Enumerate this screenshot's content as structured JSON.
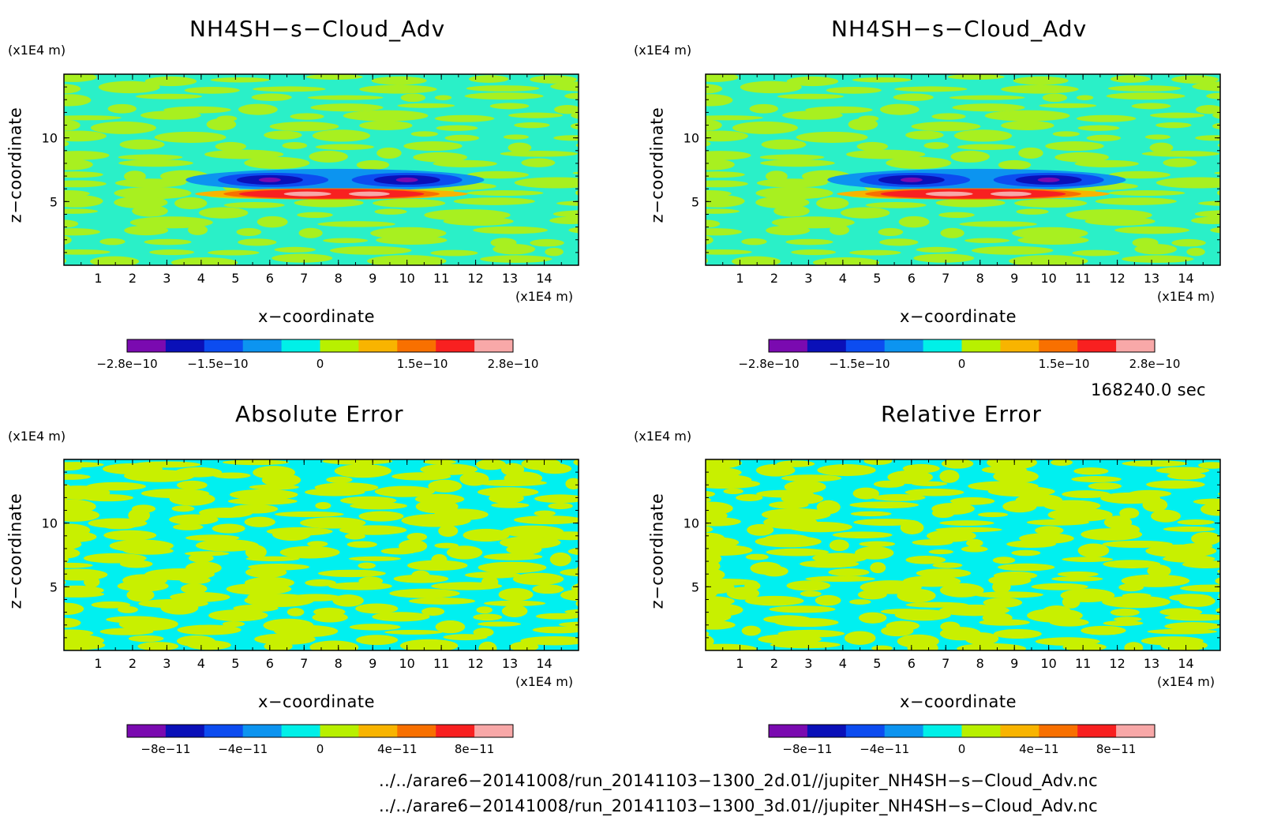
{
  "panels": [
    {
      "id": "p1",
      "title": "NH4SH−s−Cloud_Adv",
      "z_unit": "(x1E4 m)",
      "x_unit": "(x1E4 m)",
      "xlabel": "x−coordinate",
      "ylabel": "z−coordinate",
      "xticks": [
        "1",
        "2",
        "3",
        "4",
        "5",
        "6",
        "7",
        "8",
        "9",
        "10",
        "11",
        "12",
        "13",
        "14"
      ],
      "yticks": [
        "5",
        "10"
      ],
      "colorbar_labels": [
        "−2.8e−10",
        "−1.5e−10",
        "0",
        "1.5e−10",
        "2.8e−10"
      ]
    },
    {
      "id": "p2",
      "title": "NH4SH−s−Cloud_Adv",
      "z_unit": "(x1E4 m)",
      "x_unit": "(x1E4 m)",
      "xlabel": "x−coordinate",
      "ylabel": "z−coordinate",
      "xticks": [
        "1",
        "2",
        "3",
        "4",
        "5",
        "6",
        "7",
        "8",
        "9",
        "10",
        "11",
        "12",
        "13",
        "14"
      ],
      "yticks": [
        "5",
        "10"
      ],
      "colorbar_labels": [
        "−2.8e−10",
        "−1.5e−10",
        "0",
        "1.5e−10",
        "2.8e−10"
      ]
    },
    {
      "id": "p3",
      "title": "Absolute Error",
      "z_unit": "(x1E4 m)",
      "x_unit": "(x1E4 m)",
      "xlabel": "x−coordinate",
      "ylabel": "z−coordinate",
      "xticks": [
        "1",
        "2",
        "3",
        "4",
        "5",
        "6",
        "7",
        "8",
        "9",
        "10",
        "11",
        "12",
        "13",
        "14"
      ],
      "yticks": [
        "5",
        "10"
      ],
      "colorbar_labels": [
        "−8e−11",
        "−4e−11",
        "0",
        "4e−11",
        "8e−11"
      ]
    },
    {
      "id": "p4",
      "title": "Relative Error",
      "z_unit": "(x1E4 m)",
      "x_unit": "(x1E4 m)",
      "xlabel": "x−coordinate",
      "ylabel": "z−coordinate",
      "xticks": [
        "1",
        "2",
        "3",
        "4",
        "5",
        "6",
        "7",
        "8",
        "9",
        "10",
        "11",
        "12",
        "13",
        "14"
      ],
      "yticks": [
        "5",
        "10"
      ],
      "colorbar_labels": [
        "−8e−11",
        "−4e−11",
        "0",
        "4e−11",
        "8e−11"
      ]
    }
  ],
  "time_label": "168240.0 sec",
  "files": [
    "../../arare6−20141008/run_20141103−1300_2d.01//jupiter_NH4SH−s−Cloud_Adv.nc",
    "../../arare6−20141008/run_20141103−1300_3d.01//jupiter_NH4SH−s−Cloud_Adv.nc"
  ],
  "colors": {
    "palette": [
      "#7a0ab0",
      "#0a10b8",
      "#0c4cf0",
      "#0c94f0",
      "#00f0e8",
      "#b8f000",
      "#f8b400",
      "#f87000",
      "#f82020",
      "#f8a8a8"
    ],
    "field_bg": "#2af0c8",
    "field_patch": "#a8f020",
    "error_bg": "#00f0f0",
    "error_patch": "#c8f000"
  },
  "chart_data": [
    {
      "type": "heatmap",
      "title": "NH4SH−s−Cloud_Adv",
      "xlabel": "x−coordinate (x1E4 m)",
      "ylabel": "z−coordinate (x1E4 m)",
      "xlim": [
        0,
        15
      ],
      "ylim": [
        0,
        15
      ],
      "colorbar": {
        "min": -2.8e-10,
        "max": 2.8e-10,
        "ticks": [
          -2.8e-10,
          -1.5e-10,
          0,
          1.5e-10,
          2.8e-10
        ]
      },
      "features": [
        {
          "kind": "negative_core",
          "x": 6.0,
          "z": 6.6,
          "value": -2.8e-10
        },
        {
          "kind": "negative_core",
          "x": 10.0,
          "z": 6.6,
          "value": -2.8e-10
        },
        {
          "kind": "positive_band",
          "x_range": [
            5.3,
            10.2
          ],
          "z": 5.6,
          "value": 2.8e-10
        }
      ]
    },
    {
      "type": "heatmap",
      "title": "NH4SH−s−Cloud_Adv",
      "xlabel": "x−coordinate (x1E4 m)",
      "ylabel": "z−coordinate (x1E4 m)",
      "xlim": [
        0,
        15
      ],
      "ylim": [
        0,
        15
      ],
      "colorbar": {
        "min": -2.8e-10,
        "max": 2.8e-10,
        "ticks": [
          -2.8e-10,
          -1.5e-10,
          0,
          1.5e-10,
          2.8e-10
        ]
      },
      "features": [
        {
          "kind": "negative_core",
          "x": 6.0,
          "z": 6.6,
          "value": -2.8e-10
        },
        {
          "kind": "negative_core",
          "x": 10.0,
          "z": 6.6,
          "value": -2.8e-10
        },
        {
          "kind": "positive_band",
          "x_range": [
            5.3,
            10.2
          ],
          "z": 5.6,
          "value": 2.8e-10
        }
      ]
    },
    {
      "type": "heatmap",
      "title": "Absolute Error",
      "xlabel": "x−coordinate (x1E4 m)",
      "ylabel": "z−coordinate (x1E4 m)",
      "xlim": [
        0,
        15
      ],
      "ylim": [
        0,
        15
      ],
      "colorbar": {
        "min": -1e-10,
        "max": 1e-10,
        "ticks": [
          -8e-11,
          -4e-11,
          0,
          4e-11,
          8e-11
        ]
      }
    },
    {
      "type": "heatmap",
      "title": "Relative Error",
      "xlabel": "x−coordinate (x1E4 m)",
      "ylabel": "z−coordinate (x1E4 m)",
      "xlim": [
        0,
        15
      ],
      "ylim": [
        0,
        15
      ],
      "colorbar": {
        "min": -1e-10,
        "max": 1e-10,
        "ticks": [
          -8e-11,
          -4e-11,
          0,
          4e-11,
          8e-11
        ]
      }
    }
  ]
}
